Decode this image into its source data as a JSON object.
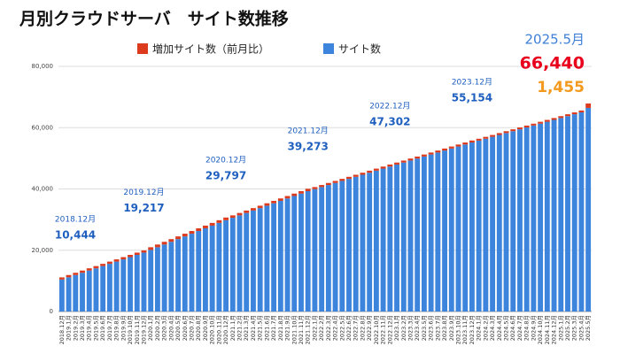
{
  "chart_data": {
    "type": "stacked_bar",
    "title": "月別クラウドサーバ　サイト数推移",
    "categories": [
      "2018.12月",
      "2019.1月",
      "2019.2月",
      "2019.3月",
      "2019.4月",
      "2019.5月",
      "2019.6月",
      "2019.7月",
      "2019.8月",
      "2019.9月",
      "2019.10月",
      "2019.11月",
      "2019.12月",
      "2020.1月",
      "2020.2月",
      "2020.3月",
      "2020.4月",
      "2020.5月",
      "2020.6月",
      "2020.7月",
      "2020.8月",
      "2020.9月",
      "2020.10月",
      "2020.11月",
      "2020.12月",
      "2021.1月",
      "2021.2月",
      "2021.3月",
      "2021.4月",
      "2021.5月",
      "2021.6月",
      "2021.7月",
      "2021.8月",
      "2021.9月",
      "2021.10月",
      "2021.11月",
      "2021.12月",
      "2022.1月",
      "2022.2月",
      "2022.3月",
      "2022.4月",
      "2022.5月",
      "2022.6月",
      "2022.7月",
      "2022.8月",
      "2022.9月",
      "2022.10月",
      "2022.11月",
      "2022.12月",
      "2023.1月",
      "2023.2月",
      "2023.3月",
      "2023.4月",
      "2023.5月",
      "2023.6月",
      "2023.7月",
      "2023.8月",
      "2023.9月",
      "2023.10月",
      "2023.11月",
      "2023.12月",
      "2024.1月",
      "2024.2月",
      "2024.3月",
      "2024.4月",
      "2024.5月",
      "2024.6月",
      "2024.7月",
      "2024.8月",
      "2024.9月",
      "2024.10月",
      "2024.11月",
      "2024.12月",
      "2025.1月",
      "2025.2月",
      "2025.3月",
      "2025.4月",
      "2025.5月"
    ],
    "series": [
      {
        "name": "サイト数",
        "color": "#3d85dc",
        "values": [
          10444,
          11175,
          11906,
          12637,
          13368,
          14099,
          14830,
          15561,
          16292,
          17023,
          17754,
          18485,
          19217,
          20099,
          20981,
          21862,
          22744,
          23626,
          24508,
          25390,
          26271,
          27153,
          28035,
          28917,
          29797,
          30587,
          31376,
          32166,
          32956,
          33745,
          34535,
          35325,
          36114,
          36904,
          37694,
          38483,
          39273,
          39942,
          40611,
          41280,
          41949,
          42618,
          43287,
          43956,
          44625,
          45294,
          45963,
          46632,
          47302,
          47956,
          48610,
          49265,
          49919,
          50573,
          51228,
          51882,
          52536,
          53191,
          53845,
          54499,
          55154,
          55768,
          56383,
          56997,
          57612,
          58226,
          58841,
          59455,
          60069,
          60684,
          61298,
          61913,
          62527,
          63142,
          63756,
          64371,
          64985,
          66440
        ]
      },
      {
        "name": "増加サイト数（前月比）",
        "color": "#dc3b1e",
        "values": [
          700,
          731,
          731,
          731,
          731,
          731,
          731,
          731,
          731,
          731,
          731,
          731,
          732,
          882,
          882,
          881,
          882,
          882,
          882,
          882,
          881,
          882,
          882,
          882,
          880,
          790,
          789,
          790,
          790,
          789,
          790,
          790,
          789,
          790,
          790,
          789,
          790,
          669,
          669,
          669,
          669,
          669,
          669,
          669,
          669,
          669,
          669,
          669,
          670,
          654,
          654,
          655,
          654,
          654,
          655,
          654,
          654,
          655,
          654,
          654,
          655,
          614,
          615,
          614,
          615,
          614,
          615,
          614,
          614,
          615,
          614,
          615,
          614,
          615,
          614,
          615,
          614,
          1455
        ]
      }
    ],
    "legend_order": [
      1,
      0
    ],
    "ylim": [
      0,
      80000
    ],
    "yticks": [
      0,
      {
        "value": 20000,
        "label": "20,000"
      },
      {
        "value": 40000,
        "label": "40,000"
      },
      {
        "value": 60000,
        "label": "60,000"
      },
      {
        "value": 80000,
        "label": "80,000"
      }
    ],
    "grid": true,
    "annotation_color": "#1f5fbf",
    "annotations": [
      {
        "label": "2018.12月",
        "value": 10444,
        "value_label": "10,444"
      },
      {
        "label": "2019.12月",
        "value": 19217,
        "value_label": "19,217"
      },
      {
        "label": "2020.12月",
        "value": 29797,
        "value_label": "29,797"
      },
      {
        "label": "2021.12月",
        "value": 39273,
        "value_label": "39,273"
      },
      {
        "label": "2022.12月",
        "value": 47302,
        "value_label": "47,302"
      },
      {
        "label": "2023.12月",
        "value": 55154,
        "value_label": "55,154"
      }
    ],
    "callout": {
      "label": "2025.5月",
      "label_color": "#3d7fd6",
      "values": [
        66440,
        1455
      ],
      "value_labels": [
        "66,440",
        "1,455"
      ],
      "colors": [
        "#e8001c",
        "#f39a1e"
      ]
    }
  }
}
